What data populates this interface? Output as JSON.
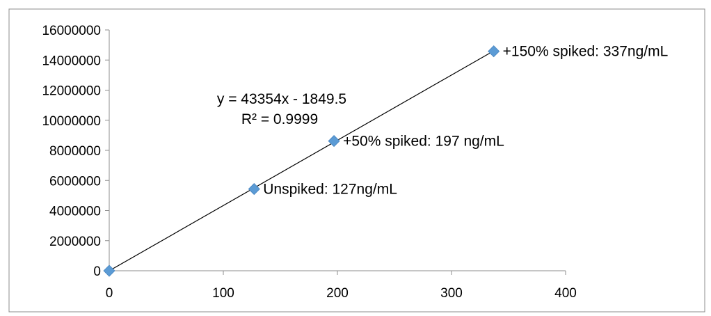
{
  "chart_data": {
    "type": "scatter",
    "xlim": [
      0,
      400
    ],
    "ylim": [
      0,
      16000000
    ],
    "x_ticks": [
      0,
      100,
      200,
      300,
      400
    ],
    "y_ticks": [
      0,
      2000000,
      4000000,
      6000000,
      8000000,
      10000000,
      12000000,
      14000000,
      16000000
    ],
    "x_tick_labels": [
      "0",
      "100",
      "200",
      "300",
      "400"
    ],
    "y_tick_labels": [
      "0",
      "2000000",
      "4000000",
      "6000000",
      "8000000",
      "10000000",
      "12000000",
      "14000000",
      "16000000"
    ],
    "grid": false,
    "legend": "none",
    "series": [
      {
        "marker": "diamond",
        "color": "#5B9BD5",
        "points": [
          {
            "x": 0,
            "y": 0,
            "label": ""
          },
          {
            "x": 127,
            "y": 5430000,
            "label": "Unspiked: 127ng/mL"
          },
          {
            "x": 197,
            "y": 8620000,
            "label": "+50% spiked: 197 ng/mL"
          },
          {
            "x": 337,
            "y": 14580000,
            "label": "+150% spiked: 337ng/mL"
          }
        ]
      }
    ],
    "trendline": {
      "type": "linear",
      "slope": 43354,
      "intercept": -1849.5,
      "x_range": [
        0,
        337
      ],
      "color": "#000000",
      "equation_label": "y = 43354x - 1849.5",
      "r2_label": "R² = 0.9999"
    }
  }
}
